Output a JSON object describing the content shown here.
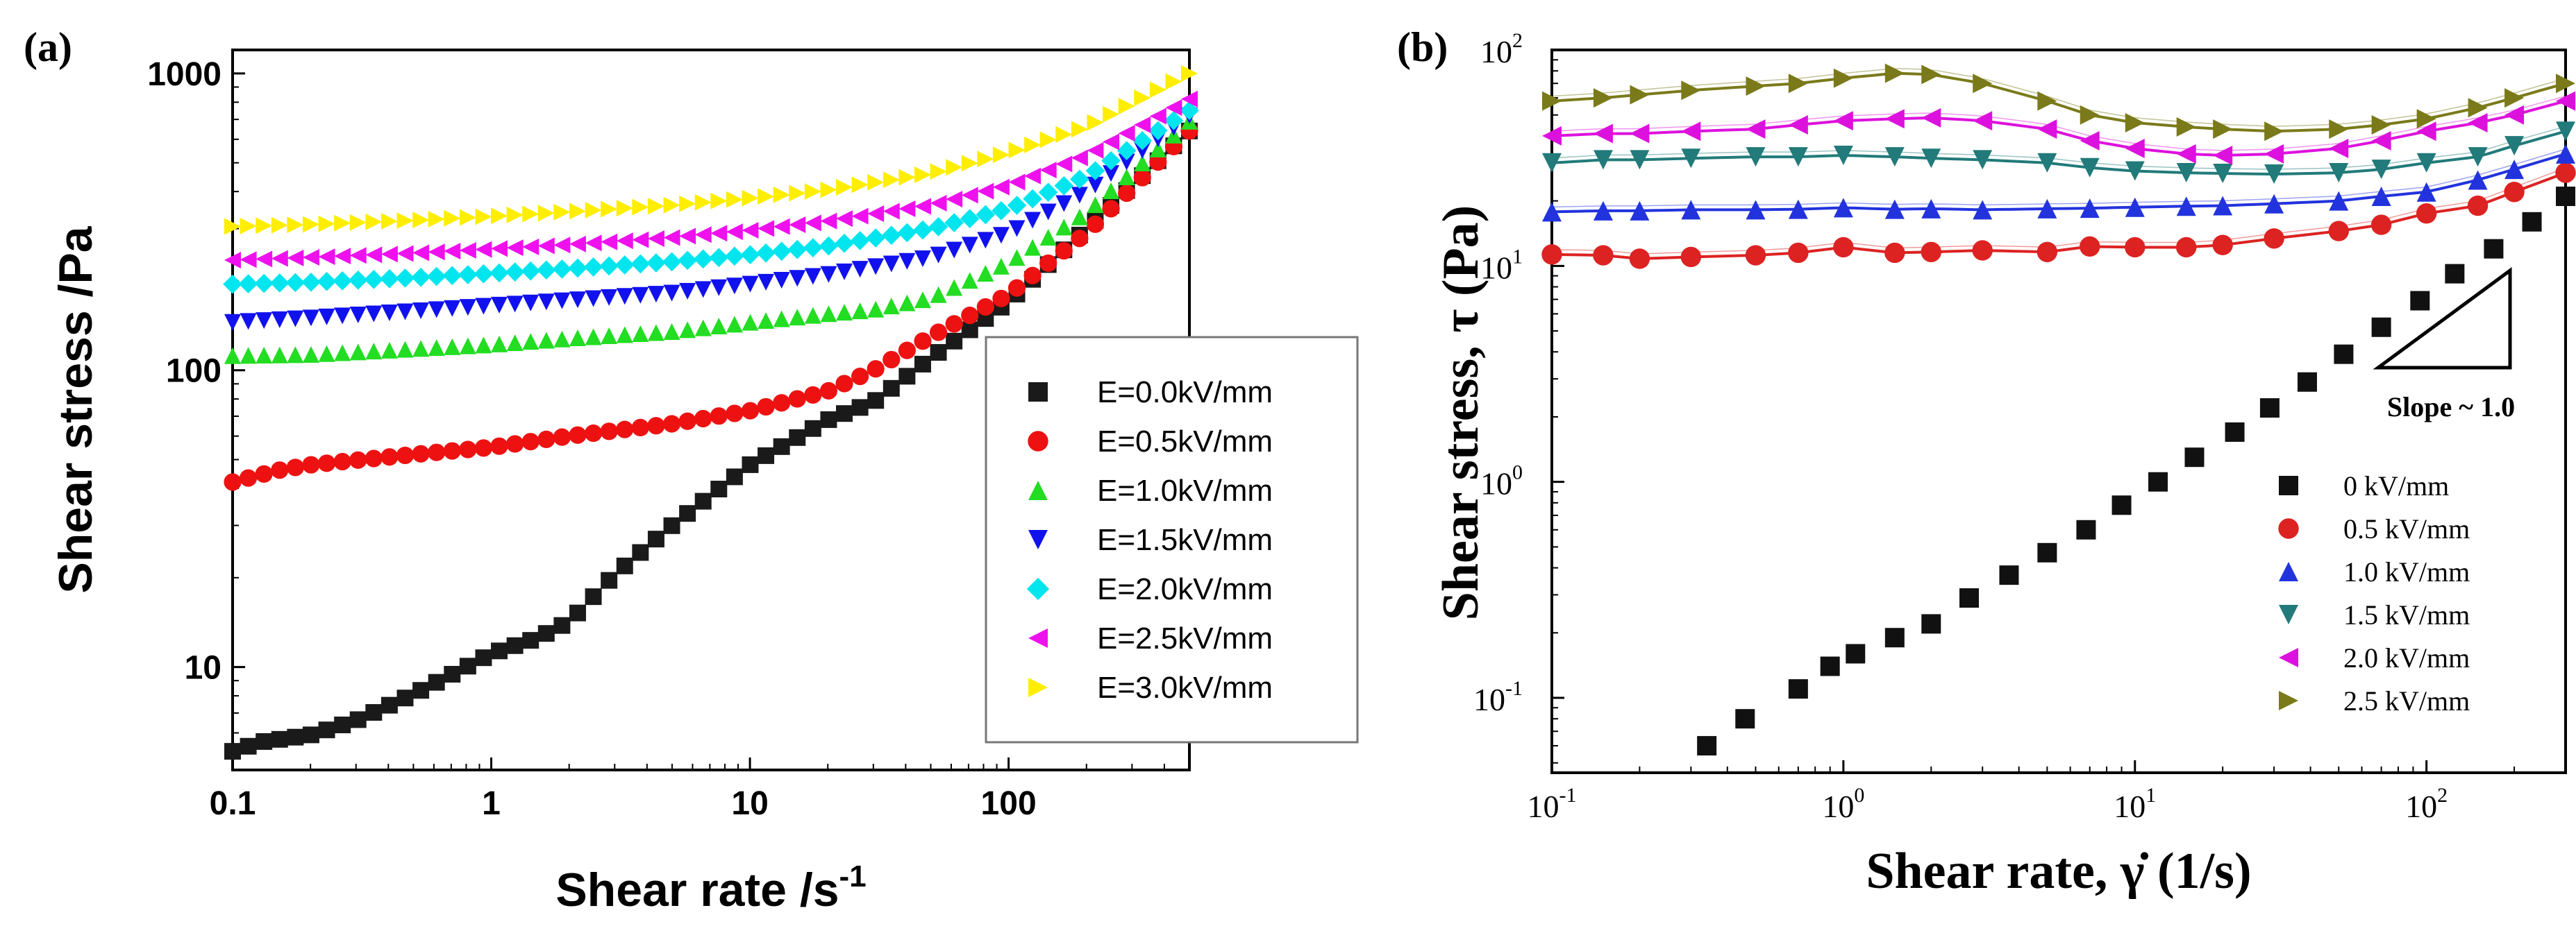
{
  "chart_data": [
    {
      "panel": "(a)",
      "type": "scatter",
      "xscale": "log",
      "yscale": "log",
      "xlim": [
        0.1,
        500
      ],
      "ylim": [
        4.5,
        1200
      ],
      "xlabel": "Shear rate /s",
      "xlabel_sup": "-1",
      "ylabel": "Shear stress /Pa",
      "xticks": [
        0.1,
        1,
        10,
        100
      ],
      "xtick_labels": [
        "0.1",
        "1",
        "10",
        "100"
      ],
      "yticks": [
        10,
        100,
        1000
      ],
      "ytick_labels": [
        "10",
        "100",
        "1000"
      ],
      "legend_position": "lower-right",
      "series": [
        {
          "name": "E=0.0kV/mm",
          "color": "#1a1a1a",
          "marker": "square",
          "points": [
            [
              0.1,
              5.2
            ],
            [
              0.13,
              5.6
            ],
            [
              0.2,
              5.9
            ],
            [
              0.3,
              6.6
            ],
            [
              0.5,
              8.1
            ],
            [
              0.8,
              10.0
            ],
            [
              1,
              11.1
            ],
            [
              1.5,
              12.5
            ],
            [
              2,
              14.2
            ],
            [
              3,
              20.5
            ],
            [
              5,
              30
            ],
            [
              10,
              48
            ],
            [
              20,
              68
            ],
            [
              30,
              78
            ],
            [
              50,
              110
            ],
            [
              100,
              170
            ],
            [
              200,
              300
            ],
            [
              500,
              640
            ]
          ]
        },
        {
          "name": "E=0.5kV/mm",
          "color": "#ee1111",
          "marker": "circle",
          "points": [
            [
              0.1,
              42
            ],
            [
              0.15,
              46
            ],
            [
              0.2,
              48
            ],
            [
              0.5,
              52
            ],
            [
              1,
              55
            ],
            [
              2,
              60
            ],
            [
              5,
              66
            ],
            [
              10,
              73
            ],
            [
              20,
              85
            ],
            [
              30,
              100
            ],
            [
              50,
              130
            ],
            [
              100,
              180
            ],
            [
              200,
              290
            ],
            [
              500,
              640
            ]
          ]
        },
        {
          "name": "E=1.0kV/mm",
          "color": "#22dd22",
          "marker": "triangle-up",
          "points": [
            [
              0.1,
              112
            ],
            [
              0.2,
              113
            ],
            [
              0.5,
              118
            ],
            [
              1,
              122
            ],
            [
              2,
              128
            ],
            [
              5,
              135
            ],
            [
              10,
              145
            ],
            [
              20,
              155
            ],
            [
              30,
              160
            ],
            [
              50,
              175
            ],
            [
              100,
              230
            ],
            [
              200,
              340
            ],
            [
              500,
              690
            ]
          ]
        },
        {
          "name": "E=1.5kV/mm",
          "color": "#1111ee",
          "marker": "triangle-down",
          "points": [
            [
              0.1,
              145
            ],
            [
              0.2,
              150
            ],
            [
              0.5,
              158
            ],
            [
              1,
              165
            ],
            [
              2,
              172
            ],
            [
              5,
              182
            ],
            [
              10,
              195
            ],
            [
              20,
              210
            ],
            [
              50,
              240
            ],
            [
              100,
              290
            ],
            [
              200,
              400
            ],
            [
              500,
              720
            ]
          ]
        },
        {
          "name": "E=2.0kV/mm",
          "color": "#00e5ee",
          "marker": "diamond",
          "points": [
            [
              0.1,
              195
            ],
            [
              0.2,
              198
            ],
            [
              0.5,
              205
            ],
            [
              1,
              212
            ],
            [
              2,
              220
            ],
            [
              5,
              232
            ],
            [
              10,
              245
            ],
            [
              20,
              262
            ],
            [
              50,
              300
            ],
            [
              100,
              350
            ],
            [
              200,
              450
            ],
            [
              500,
              750
            ]
          ]
        },
        {
          "name": "E=2.5kV/mm",
          "color": "#ee11ee",
          "marker": "triangle-left",
          "points": [
            [
              0.1,
              235
            ],
            [
              0.2,
              240
            ],
            [
              0.5,
              248
            ],
            [
              1,
              256
            ],
            [
              2,
              265
            ],
            [
              5,
              280
            ],
            [
              10,
              296
            ],
            [
              20,
              318
            ],
            [
              50,
              360
            ],
            [
              100,
              420
            ],
            [
              200,
              530
            ],
            [
              500,
              820
            ]
          ]
        },
        {
          "name": "E=3.0kV/mm",
          "color": "#ffee00",
          "marker": "triangle-right",
          "points": [
            [
              0.1,
              305
            ],
            [
              0.2,
              310
            ],
            [
              0.5,
              320
            ],
            [
              1,
              330
            ],
            [
              2,
              342
            ],
            [
              5,
              360
            ],
            [
              10,
              380
            ],
            [
              20,
              405
            ],
            [
              50,
              460
            ],
            [
              100,
              540
            ],
            [
              200,
              660
            ],
            [
              500,
              1000
            ]
          ]
        }
      ]
    },
    {
      "panel": "(b)",
      "type": "scatter",
      "xscale": "log",
      "yscale": "log",
      "xlim": [
        0.1,
        300
      ],
      "ylim": [
        0.045,
        100
      ],
      "xlabel": "Shear rate, γ̇ (1/s)",
      "ylabel": "Shear stress, τ (Pa)",
      "xticks": [
        0.1,
        1,
        10,
        100
      ],
      "xtick_base": "10",
      "xtick_exps": [
        "-1",
        "0",
        "1",
        "2"
      ],
      "yticks": [
        0.1,
        1,
        10,
        100
      ],
      "ytick_base": "10",
      "ytick_exps": [
        "-1",
        "0",
        "1",
        "2"
      ],
      "annotation": "Slope ~ 1.0",
      "legend_position": "lower-right",
      "series": [
        {
          "name": "0 kV/mm",
          "color": "#111111",
          "marker": "square",
          "fit": false,
          "points": [
            [
              0.34,
              0.06
            ],
            [
              0.46,
              0.08
            ],
            [
              0.7,
              0.11
            ],
            [
              0.9,
              0.14
            ],
            [
              1.1,
              0.16
            ],
            [
              1.5,
              0.19
            ],
            [
              2,
              0.22
            ],
            [
              2.7,
              0.29
            ],
            [
              3.7,
              0.37
            ],
            [
              5,
              0.47
            ],
            [
              6.8,
              0.6
            ],
            [
              9,
              0.78
            ],
            [
              12,
              1.0
            ],
            [
              16,
              1.3
            ],
            [
              22,
              1.7
            ],
            [
              29,
              2.2
            ],
            [
              39,
              2.9
            ],
            [
              52,
              3.9
            ],
            [
              70,
              5.2
            ],
            [
              95,
              6.9
            ],
            [
              125,
              9.2
            ],
            [
              170,
              12
            ],
            [
              230,
              16
            ],
            [
              300,
              21
            ]
          ]
        },
        {
          "name": "0.5 kV/mm",
          "color": "#dd2222",
          "marker": "circle",
          "fit": true,
          "points": [
            [
              0.1,
              11.3
            ],
            [
              0.15,
              11.2
            ],
            [
              0.2,
              10.8
            ],
            [
              0.3,
              11
            ],
            [
              0.5,
              11.2
            ],
            [
              0.7,
              11.5
            ],
            [
              1,
              12.2
            ],
            [
              1.5,
              11.5
            ],
            [
              2,
              11.6
            ],
            [
              3,
              11.8
            ],
            [
              5,
              11.6
            ],
            [
              7,
              12.3
            ],
            [
              10,
              12.2
            ],
            [
              15,
              12.2
            ],
            [
              20,
              12.5
            ],
            [
              30,
              13.4
            ],
            [
              50,
              14.5
            ],
            [
              70,
              15.5
            ],
            [
              100,
              17.5
            ],
            [
              150,
              19
            ],
            [
              200,
              22
            ],
            [
              300,
              27
            ]
          ]
        },
        {
          "name": "1.0 kV/mm",
          "color": "#2233dd",
          "marker": "triangle-up",
          "fit": true,
          "points": [
            [
              0.1,
              17.8
            ],
            [
              0.15,
              18
            ],
            [
              0.2,
              18
            ],
            [
              0.3,
              18.2
            ],
            [
              0.5,
              18.2
            ],
            [
              0.7,
              18.3
            ],
            [
              1,
              18.6
            ],
            [
              1.5,
              18.3
            ],
            [
              2,
              18.4
            ],
            [
              3,
              18.2
            ],
            [
              5,
              18.4
            ],
            [
              7,
              18.5
            ],
            [
              10,
              18.7
            ],
            [
              15,
              18.9
            ],
            [
              20,
              19
            ],
            [
              30,
              19.4
            ],
            [
              50,
              20
            ],
            [
              70,
              21
            ],
            [
              100,
              22
            ],
            [
              150,
              25
            ],
            [
              200,
              28
            ],
            [
              300,
              33
            ]
          ]
        },
        {
          "name": "1.5 kV/mm",
          "color": "#227a7a",
          "marker": "triangle-down",
          "fit": true,
          "points": [
            [
              0.1,
              30
            ],
            [
              0.15,
              31
            ],
            [
              0.2,
              31
            ],
            [
              0.3,
              31.5
            ],
            [
              0.5,
              32
            ],
            [
              0.7,
              32
            ],
            [
              1,
              32.5
            ],
            [
              1.5,
              32
            ],
            [
              2,
              31.5
            ],
            [
              3,
              31
            ],
            [
              5,
              30
            ],
            [
              7,
              28.5
            ],
            [
              10,
              27.5
            ],
            [
              15,
              27
            ],
            [
              20,
              26.8
            ],
            [
              30,
              26.6
            ],
            [
              50,
              27
            ],
            [
              70,
              28
            ],
            [
              100,
              30
            ],
            [
              150,
              32
            ],
            [
              200,
              36
            ],
            [
              300,
              42
            ]
          ]
        },
        {
          "name": "2.0 kV/mm",
          "color": "#dd11dd",
          "marker": "triangle-left",
          "fit": true,
          "points": [
            [
              0.1,
              40
            ],
            [
              0.15,
              41
            ],
            [
              0.2,
              41
            ],
            [
              0.3,
              42
            ],
            [
              0.5,
              43
            ],
            [
              0.7,
              45
            ],
            [
              1,
              47
            ],
            [
              1.5,
              48
            ],
            [
              2,
              48.5
            ],
            [
              3,
              47
            ],
            [
              5,
              43
            ],
            [
              7,
              38
            ],
            [
              10,
              35
            ],
            [
              15,
              33
            ],
            [
              20,
              32.5
            ],
            [
              30,
              33
            ],
            [
              50,
              35
            ],
            [
              70,
              38
            ],
            [
              100,
              42
            ],
            [
              150,
              46
            ],
            [
              200,
              50
            ],
            [
              300,
              58
            ]
          ]
        },
        {
          "name": "2.5 kV/mm",
          "color": "#7a7a1a",
          "marker": "triangle-right",
          "fit": true,
          "points": [
            [
              0.1,
              58
            ],
            [
              0.15,
              60
            ],
            [
              0.2,
              62
            ],
            [
              0.3,
              65
            ],
            [
              0.5,
              68
            ],
            [
              0.7,
              70
            ],
            [
              1,
              74
            ],
            [
              1.5,
              78
            ],
            [
              2,
              77
            ],
            [
              3,
              70
            ],
            [
              5,
              58
            ],
            [
              7,
              50
            ],
            [
              10,
              46
            ],
            [
              15,
              44
            ],
            [
              20,
              43
            ],
            [
              30,
              42
            ],
            [
              50,
              43
            ],
            [
              70,
              45
            ],
            [
              100,
              48
            ],
            [
              150,
              54
            ],
            [
              200,
              60
            ],
            [
              300,
              70
            ]
          ]
        }
      ]
    }
  ]
}
